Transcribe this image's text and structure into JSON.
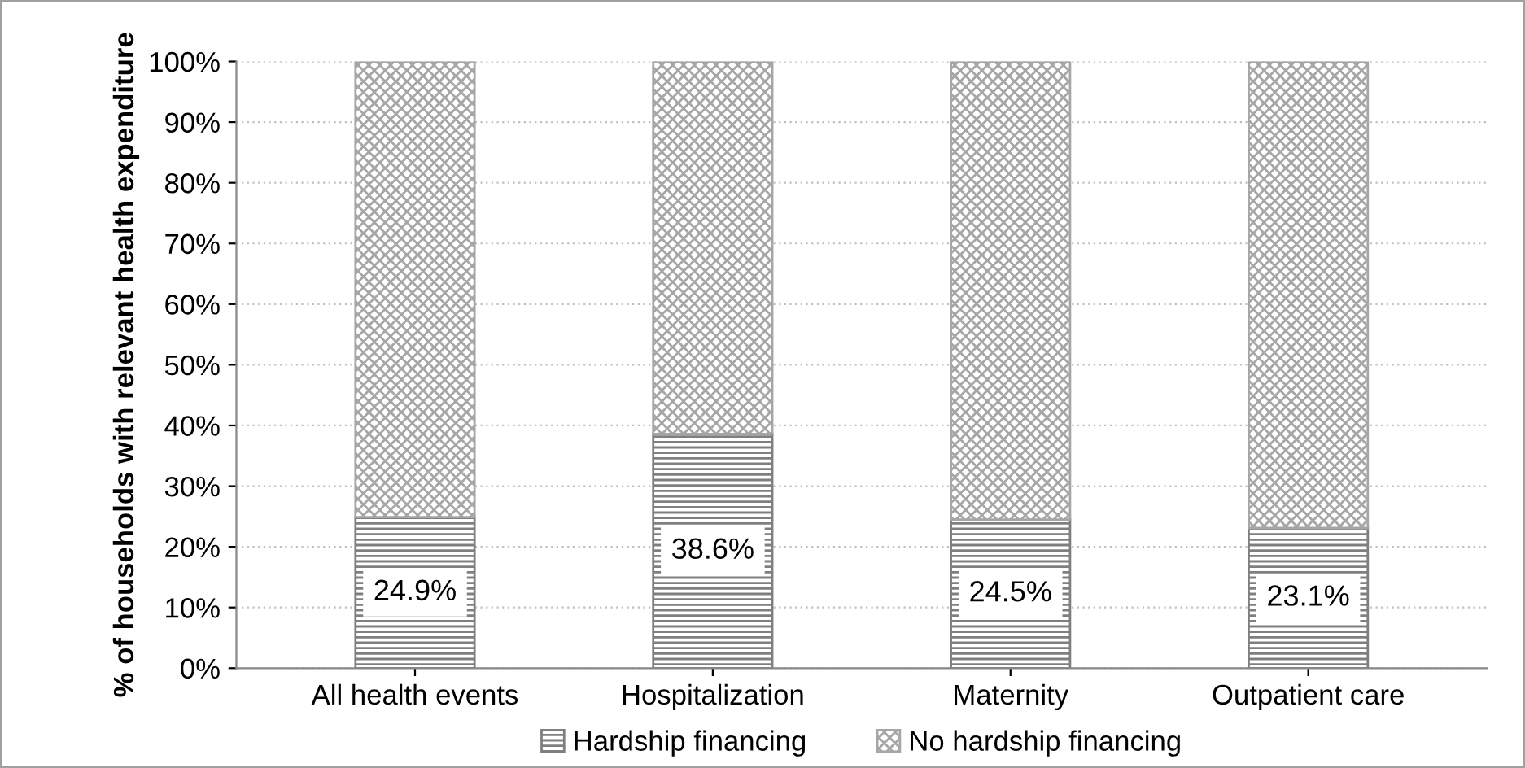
{
  "chart_data": {
    "type": "bar",
    "stacked": true,
    "ylabel": "% of households with relevant health expenditure",
    "categories": [
      "All health events",
      "Hospitalization",
      "Maternity",
      "Outpatient care"
    ],
    "series": [
      {
        "name": "Hardship financing",
        "color": "#7f7f7f",
        "values": [
          24.9,
          38.6,
          24.5,
          23.1
        ],
        "value_labels": [
          "24.9%",
          "38.6%",
          "24.5%",
          "23.1%"
        ]
      },
      {
        "name": "No hardship financing",
        "color": "#a6a6a6",
        "values": [
          75.1,
          61.4,
          75.5,
          76.9
        ]
      }
    ],
    "ylim": [
      0,
      100
    ],
    "yticks": [
      {
        "value": 0,
        "label": "0%"
      },
      {
        "value": 10,
        "label": "10%"
      },
      {
        "value": 20,
        "label": "20%"
      },
      {
        "value": 30,
        "label": "30%"
      },
      {
        "value": 40,
        "label": "40%"
      },
      {
        "value": 50,
        "label": "50%"
      },
      {
        "value": 60,
        "label": "60%"
      },
      {
        "value": 70,
        "label": "70%"
      },
      {
        "value": 80,
        "label": "80%"
      },
      {
        "value": 90,
        "label": "90%"
      },
      {
        "value": 100,
        "label": "100%"
      }
    ],
    "grid": "y",
    "legend": "bottom"
  }
}
